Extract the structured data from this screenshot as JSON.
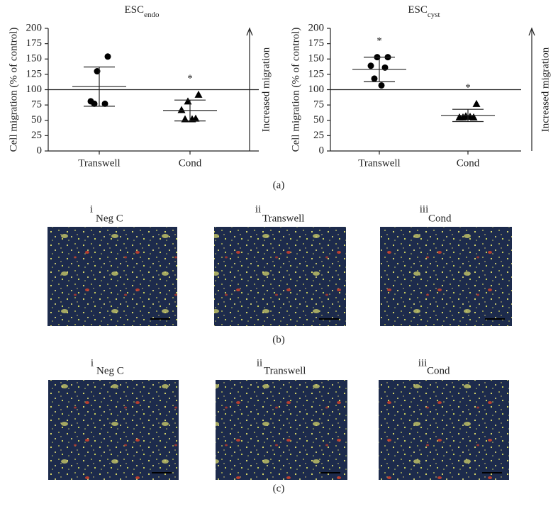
{
  "chart_data": [
    {
      "type": "strip",
      "title": "ESC",
      "title_subscript": "endo",
      "ylabel": "Cell migration (% of control)",
      "side_label": "Increased migration",
      "categories": [
        "Transwell",
        "Cond"
      ],
      "markers": [
        "circle",
        "triangle"
      ],
      "color": "#000000",
      "values": [
        [
          154,
          130,
          81,
          77,
          77
        ],
        [
          92,
          81,
          67,
          53,
          52,
          52
        ]
      ],
      "mean": [
        105,
        66
      ],
      "sd": [
        32,
        17
      ],
      "significance": [
        null,
        "*"
      ],
      "reference_line": 100,
      "ylim": [
        0,
        200
      ],
      "yticks": [
        0,
        25,
        50,
        75,
        100,
        125,
        150,
        175,
        200
      ]
    },
    {
      "type": "strip",
      "title": "ESC",
      "title_subscript": "cyst",
      "ylabel": "Cell migration (% of control)",
      "side_label": "Increased migration",
      "categories": [
        "Transwell",
        "Cond"
      ],
      "markers": [
        "circle",
        "triangle"
      ],
      "color": "#000000",
      "values": [
        [
          153,
          153,
          139,
          136,
          118,
          107
        ],
        [
          77,
          57,
          55,
          55,
          55,
          56
        ]
      ],
      "mean": [
        133,
        58
      ],
      "sd": [
        20,
        10
      ],
      "significance": [
        "*",
        "*"
      ],
      "reference_line": 100,
      "ylim": [
        0,
        200
      ],
      "yticks": [
        0,
        25,
        50,
        75,
        100,
        125,
        150,
        175,
        200
      ]
    }
  ],
  "figure": {
    "caption": "(a)",
    "panels": [
      {
        "caption": "(b)",
        "images": [
          {
            "numeral": "i",
            "label": "Neg C"
          },
          {
            "numeral": "ii",
            "label": "Transwell"
          },
          {
            "numeral": "iii",
            "label": "Cond"
          }
        ]
      },
      {
        "caption": "(c)",
        "images": [
          {
            "numeral": "i",
            "label": "Neg C"
          },
          {
            "numeral": "ii",
            "label": "Transwell"
          },
          {
            "numeral": "iii",
            "label": "Cond"
          }
        ]
      }
    ]
  }
}
